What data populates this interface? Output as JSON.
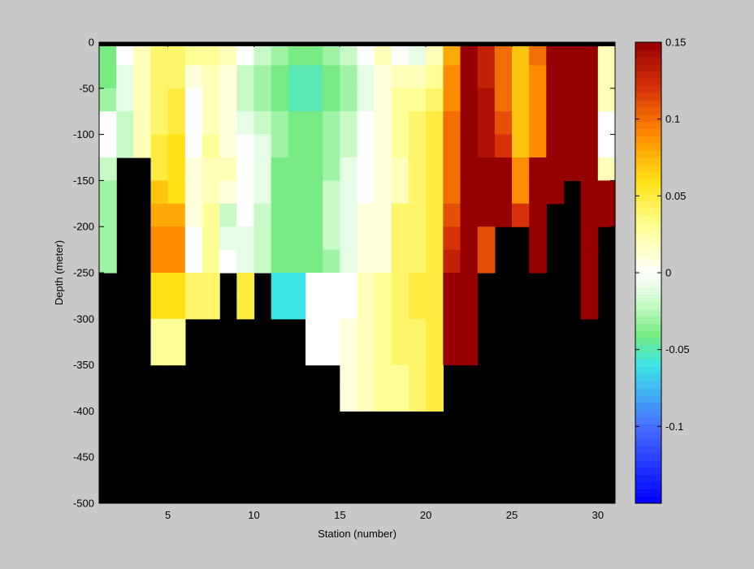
{
  "chart_data": {
    "type": "heatmap",
    "title": "",
    "xlabel": "Station (number)",
    "ylabel": "Depth (meter)",
    "x_ticks": [
      5,
      10,
      15,
      20,
      25,
      30
    ],
    "y_ticks": [
      0,
      -50,
      -100,
      -150,
      -200,
      -250,
      -300,
      -350,
      -400,
      -450,
      -500
    ],
    "xlim": [
      1,
      31
    ],
    "ylim": [
      -500,
      0
    ],
    "x": [
      1,
      2,
      3,
      4,
      5,
      6,
      7,
      8,
      9,
      10,
      11,
      12,
      13,
      14,
      15,
      16,
      17,
      18,
      19,
      20,
      21,
      22,
      23,
      24,
      25,
      26,
      27,
      28,
      29,
      30
    ],
    "y": [
      -12.5,
      -37.5,
      -62.5,
      -87.5,
      -112.5,
      -137.5,
      -162.5,
      -187.5,
      -212.5,
      -237.5,
      -262.5,
      -287.5,
      -312.5,
      -337.5,
      -362.5,
      -387.5
    ],
    "no_data_color": "#000000",
    "colorbar": {
      "range": [
        -0.15,
        0.15
      ],
      "ticks": [
        0.15,
        0.1,
        0.05,
        0,
        -0.05,
        -0.1
      ],
      "tick_labels": [
        "0.15",
        "0.1",
        "0.05",
        "0",
        "-0.05",
        "-0.1"
      ],
      "colormap": "jet-like diverging (blue - cyan - green - white - yellow - orange - dark red)"
    },
    "values": [
      [
        -0.04,
        0.0,
        0.02,
        0.04,
        0.04,
        0.03,
        0.03,
        0.02,
        0.0,
        -0.02,
        -0.03,
        -0.04,
        -0.04,
        -0.03,
        -0.02,
        0.0,
        0.02,
        0.0,
        -0.01,
        0.02,
        0.08,
        0.15,
        0.13,
        0.1,
        0.07,
        0.1,
        0.15,
        0.15,
        0.15,
        0.02
      ],
      [
        -0.04,
        -0.01,
        0.02,
        0.04,
        0.04,
        0.01,
        0.02,
        0.01,
        -0.02,
        -0.03,
        -0.04,
        -0.05,
        -0.05,
        -0.04,
        -0.03,
        -0.01,
        0.01,
        0.02,
        0.02,
        0.03,
        0.09,
        0.15,
        0.13,
        0.1,
        0.07,
        0.09,
        0.15,
        0.15,
        0.15,
        0.02
      ],
      [
        -0.03,
        -0.01,
        0.02,
        0.04,
        0.05,
        0.0,
        0.02,
        0.01,
        -0.02,
        -0.03,
        -0.04,
        -0.05,
        -0.05,
        -0.04,
        -0.03,
        -0.01,
        0.01,
        0.03,
        0.03,
        0.04,
        0.09,
        0.15,
        0.14,
        0.1,
        0.07,
        0.09,
        0.15,
        0.15,
        0.15,
        0.02
      ],
      [
        0.0,
        -0.02,
        0.02,
        0.04,
        0.05,
        0.0,
        0.02,
        0.01,
        -0.01,
        -0.02,
        -0.03,
        -0.04,
        -0.04,
        -0.03,
        -0.02,
        0.0,
        0.01,
        0.03,
        0.04,
        0.05,
        0.1,
        0.15,
        0.14,
        0.11,
        0.07,
        0.09,
        0.15,
        0.15,
        0.15,
        0.0
      ],
      [
        0.0,
        -0.02,
        0.02,
        0.05,
        0.06,
        0.0,
        0.03,
        0.01,
        0.0,
        -0.01,
        -0.03,
        -0.04,
        -0.04,
        -0.03,
        -0.02,
        0.0,
        0.01,
        0.03,
        0.04,
        0.05,
        0.1,
        0.15,
        0.14,
        0.12,
        0.07,
        0.09,
        0.15,
        0.15,
        0.15,
        0.0
      ],
      [
        -0.02,
        null,
        null,
        0.05,
        0.06,
        0.01,
        0.02,
        0.02,
        0.0,
        -0.01,
        -0.04,
        -0.04,
        -0.04,
        -0.03,
        -0.01,
        0.0,
        0.01,
        0.02,
        0.04,
        0.05,
        0.1,
        0.15,
        0.15,
        0.15,
        0.09,
        0.15,
        0.15,
        0.15,
        0.15,
        0.02
      ],
      [
        -0.03,
        null,
        null,
        0.07,
        0.06,
        0.01,
        0.02,
        0.01,
        0.0,
        -0.01,
        -0.04,
        -0.04,
        -0.04,
        -0.02,
        -0.01,
        0.0,
        0.01,
        0.02,
        0.04,
        0.05,
        0.1,
        0.15,
        0.15,
        0.15,
        0.09,
        0.15,
        0.15,
        null,
        0.15,
        0.15
      ],
      [
        -0.03,
        null,
        null,
        0.08,
        0.08,
        0.01,
        0.03,
        -0.02,
        0.0,
        -0.02,
        -0.04,
        -0.04,
        -0.04,
        -0.02,
        -0.01,
        0.01,
        0.01,
        0.04,
        0.04,
        0.05,
        0.11,
        0.15,
        0.15,
        0.15,
        0.12,
        0.15,
        null,
        null,
        0.15,
        0.15
      ],
      [
        -0.03,
        null,
        null,
        0.09,
        0.09,
        0.0,
        0.03,
        -0.01,
        -0.01,
        -0.02,
        -0.04,
        -0.04,
        -0.04,
        -0.02,
        -0.01,
        0.01,
        0.01,
        0.04,
        0.04,
        0.05,
        0.12,
        0.15,
        0.11,
        null,
        null,
        0.15,
        null,
        null,
        0.15,
        null
      ],
      [
        -0.03,
        null,
        null,
        0.09,
        0.09,
        0.0,
        0.03,
        0.0,
        -0.01,
        -0.02,
        -0.04,
        -0.04,
        -0.04,
        -0.03,
        -0.01,
        0.01,
        0.01,
        0.04,
        0.04,
        0.05,
        0.13,
        0.15,
        0.11,
        null,
        null,
        0.15,
        null,
        null,
        0.15,
        null
      ],
      [
        null,
        null,
        null,
        0.06,
        0.06,
        0.04,
        0.04,
        null,
        0.05,
        null,
        -0.06,
        -0.06,
        0.0,
        0.0,
        0.0,
        0.02,
        0.03,
        0.04,
        0.05,
        0.05,
        0.15,
        0.15,
        null,
        null,
        null,
        null,
        null,
        null,
        0.15,
        null
      ],
      [
        null,
        null,
        null,
        0.06,
        0.06,
        0.04,
        0.04,
        null,
        0.05,
        null,
        -0.06,
        -0.06,
        0.0,
        0.0,
        0.0,
        0.02,
        0.03,
        0.04,
        0.05,
        0.05,
        0.15,
        0.15,
        null,
        null,
        null,
        null,
        null,
        null,
        0.15,
        null
      ],
      [
        null,
        null,
        null,
        0.03,
        0.03,
        null,
        null,
        null,
        null,
        null,
        null,
        null,
        0.0,
        0.0,
        0.01,
        0.02,
        0.03,
        0.04,
        0.04,
        0.05,
        0.15,
        0.15,
        null,
        null,
        null,
        null,
        null,
        null,
        null,
        null
      ],
      [
        null,
        null,
        null,
        0.03,
        0.03,
        null,
        null,
        null,
        null,
        null,
        null,
        null,
        0.0,
        0.0,
        0.01,
        0.02,
        0.03,
        0.04,
        0.04,
        0.05,
        0.15,
        0.15,
        null,
        null,
        null,
        null,
        null,
        null,
        null,
        null
      ],
      [
        null,
        null,
        null,
        null,
        null,
        null,
        null,
        null,
        null,
        null,
        null,
        null,
        null,
        null,
        0.01,
        0.02,
        0.03,
        0.03,
        0.04,
        0.05,
        null,
        null,
        null,
        null,
        null,
        null,
        null,
        null,
        null,
        null
      ],
      [
        null,
        null,
        null,
        null,
        null,
        null,
        null,
        null,
        null,
        null,
        null,
        null,
        null,
        null,
        0.01,
        0.02,
        0.03,
        0.03,
        0.04,
        0.05,
        null,
        null,
        null,
        null,
        null,
        null,
        null,
        null,
        null,
        null
      ]
    ]
  }
}
